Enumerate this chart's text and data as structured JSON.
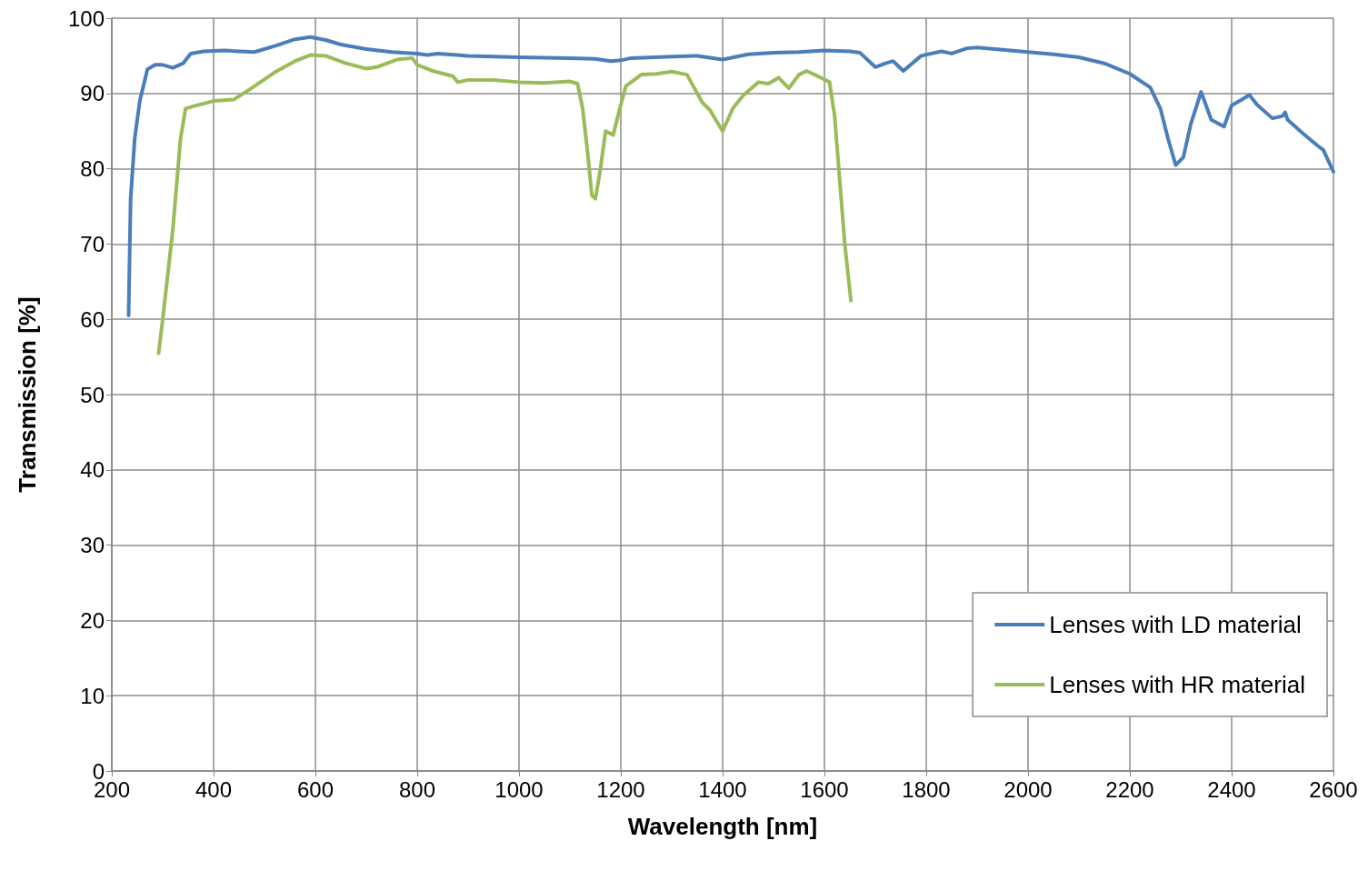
{
  "chart_data": {
    "type": "line",
    "xlabel": "Wavelength [nm]",
    "ylabel": "Transmission [%]",
    "xlim": [
      200,
      2600
    ],
    "xticks": [
      200,
      400,
      600,
      800,
      1000,
      1200,
      1400,
      1600,
      1800,
      2000,
      2200,
      2400,
      2600
    ],
    "ylim": [
      0,
      100
    ],
    "yticks": [
      0,
      10,
      20,
      30,
      40,
      50,
      60,
      70,
      80,
      90,
      100
    ],
    "grid": true,
    "legend": "bottom right",
    "marker": "none",
    "line_style": "solid",
    "series": [
      {
        "name": "Lenses with LD material",
        "color": "#4a7ebb",
        "x": [
          233,
          237,
          245,
          255,
          270,
          285,
          300,
          320,
          340,
          355,
          380,
          420,
          450,
          480,
          520,
          560,
          590,
          620,
          650,
          700,
          750,
          800,
          820,
          840,
          900,
          1000,
          1100,
          1150,
          1180,
          1200,
          1220,
          1300,
          1350,
          1400,
          1450,
          1500,
          1550,
          1600,
          1650,
          1670,
          1700,
          1720,
          1735,
          1755,
          1790,
          1830,
          1850,
          1880,
          1900,
          1950,
          2000,
          2050,
          2100,
          2150,
          2200,
          2240,
          2260,
          2275,
          2290,
          2305,
          2320,
          2340,
          2360,
          2385,
          2400,
          2420,
          2435,
          2450,
          2480,
          2500,
          2505,
          2510,
          2540,
          2570,
          2580,
          2600
        ],
        "values": [
          60.5,
          76,
          84,
          89,
          93.2,
          93.8,
          93.8,
          93.4,
          94,
          95.3,
          95.6,
          95.7,
          95.6,
          95.5,
          96.3,
          97.2,
          97.5,
          97.1,
          96.5,
          95.9,
          95.5,
          95.3,
          95.1,
          95.3,
          95,
          94.8,
          94.7,
          94.6,
          94.3,
          94.4,
          94.7,
          94.9,
          95,
          94.5,
          95.2,
          95.4,
          95.5,
          95.7,
          95.6,
          95.4,
          93.5,
          94,
          94.3,
          93,
          95,
          95.6,
          95.3,
          96,
          96.1,
          95.8,
          95.5,
          95.2,
          94.8,
          94,
          92.6,
          90.8,
          88,
          84,
          80.5,
          81.5,
          86,
          90.2,
          86.5,
          85.6,
          88.4,
          89.2,
          89.8,
          88.5,
          86.7,
          87,
          87.5,
          86.5,
          84.7,
          83,
          82.5,
          79.6
        ]
      },
      {
        "name": "Lenses with HR material",
        "color": "#9bbb59",
        "x": [
          292,
          300,
          320,
          335,
          345,
          360,
          400,
          440,
          470,
          520,
          560,
          590,
          620,
          660,
          700,
          720,
          760,
          790,
          800,
          830,
          870,
          880,
          900,
          950,
          1000,
          1050,
          1100,
          1115,
          1125,
          1135,
          1143,
          1150,
          1160,
          1170,
          1185,
          1200,
          1210,
          1240,
          1270,
          1300,
          1330,
          1360,
          1375,
          1400,
          1420,
          1440,
          1470,
          1490,
          1510,
          1530,
          1550,
          1565,
          1590,
          1610,
          1620,
          1640,
          1652
        ],
        "values": [
          55.5,
          60,
          72,
          84,
          88,
          88.3,
          89,
          89.2,
          90.5,
          92.8,
          94.3,
          95.1,
          95,
          94,
          93.3,
          93.5,
          94.5,
          94.7,
          93.8,
          93,
          92.3,
          91.5,
          91.8,
          91.8,
          91.5,
          91.4,
          91.6,
          91.3,
          88,
          82,
          76.5,
          76,
          80,
          85,
          84.5,
          88.5,
          91,
          92.5,
          92.6,
          92.9,
          92.5,
          88.8,
          87.8,
          85,
          88,
          89.7,
          91.5,
          91.3,
          92.1,
          90.7,
          92.5,
          93,
          92.2,
          91.5,
          87,
          70,
          62.5
        ]
      }
    ]
  }
}
